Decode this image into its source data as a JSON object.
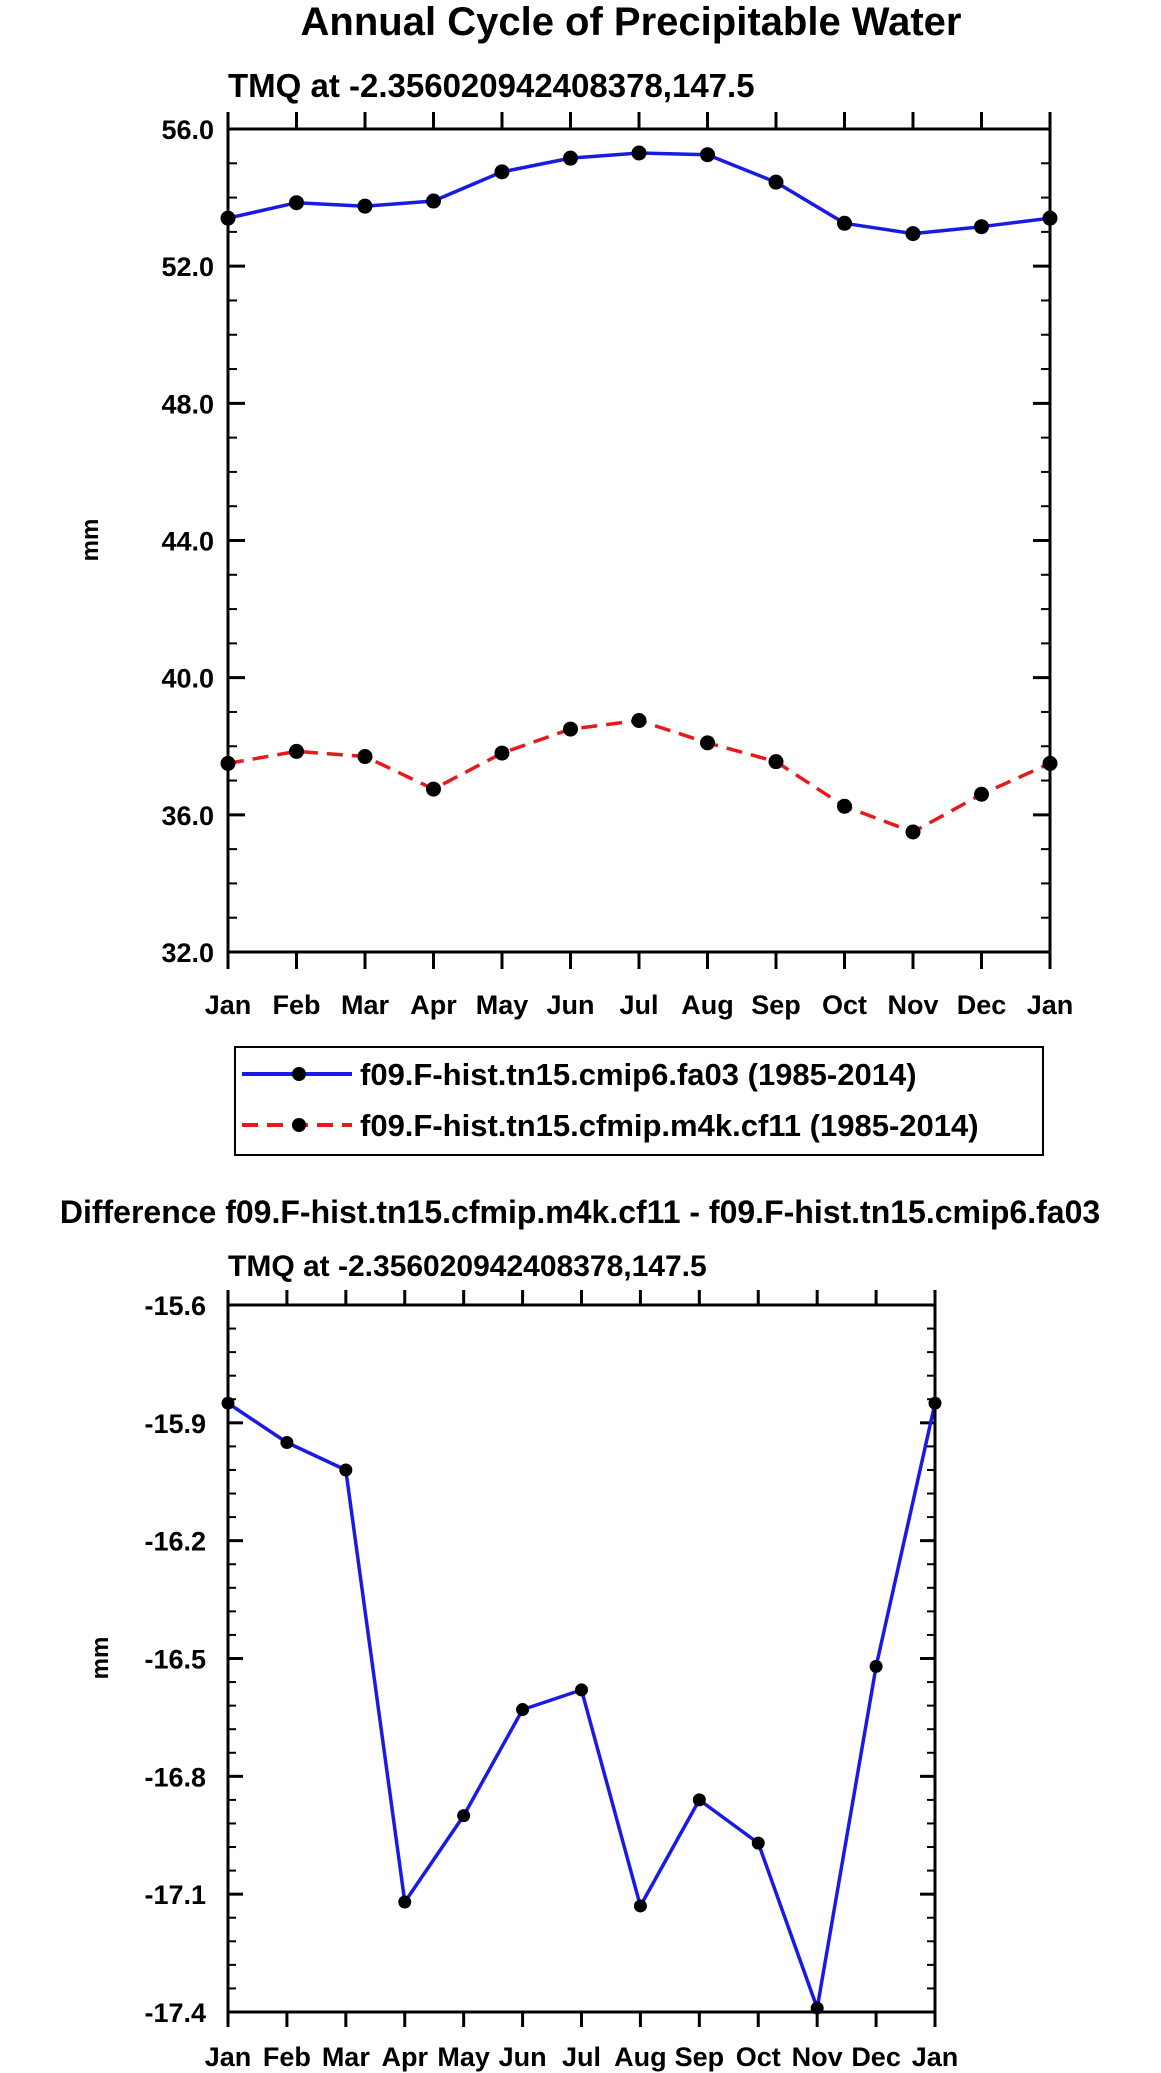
{
  "chart_data": [
    {
      "type": "line",
      "title": "Annual Cycle of Precipitable Water",
      "subtitle": "TMQ at -2.356020942408378,147.5",
      "ylabel": "mm",
      "xlabel": "",
      "categories": [
        "Jan",
        "Feb",
        "Mar",
        "Apr",
        "May",
        "Jun",
        "Jul",
        "Aug",
        "Sep",
        "Oct",
        "Nov",
        "Dec",
        "Jan"
      ],
      "ylim": [
        32,
        56
      ],
      "yticks": [
        "32.0",
        "36.0",
        "40.0",
        "44.0",
        "48.0",
        "52.0",
        "56.0"
      ],
      "yticks_values": [
        32,
        36,
        40,
        44,
        48,
        52,
        56
      ],
      "grid": false,
      "legend_position": "bottom",
      "series": [
        {
          "name": "f09.F-hist.tn15.cmip6.fa03 (1985-2014)",
          "color": "#1a1ae6",
          "dash": "solid",
          "values": [
            53.4,
            53.85,
            53.75,
            53.9,
            54.75,
            55.15,
            55.3,
            55.25,
            54.45,
            53.25,
            52.95,
            53.15,
            53.4
          ]
        },
        {
          "name": "f09.F-hist.tn15.cfmip.m4k.cf11 (1985-2014)",
          "color": "#e61a1a",
          "dash": "dashed",
          "values": [
            37.5,
            37.85,
            37.7,
            36.75,
            37.8,
            38.5,
            38.75,
            38.1,
            37.55,
            36.25,
            35.5,
            36.6,
            37.5
          ]
        }
      ]
    },
    {
      "type": "line",
      "title": "Difference f09.F-hist.tn15.cfmip.m4k.cf11 - f09.F-hist.tn15.cmip6.fa03",
      "subtitle": "TMQ at -2.356020942408378,147.5",
      "ylabel": "mm",
      "xlabel": "",
      "categories": [
        "Jan",
        "Feb",
        "Mar",
        "Apr",
        "May",
        "Jun",
        "Jul",
        "Aug",
        "Sep",
        "Oct",
        "Nov",
        "Dec",
        "Jan"
      ],
      "ylim": [
        -17.4,
        -15.6
      ],
      "yticks": [
        "-17.4",
        "-17.1",
        "-16.8",
        "-16.5",
        "-16.2",
        "-15.9",
        "-15.6"
      ],
      "yticks_values": [
        -17.4,
        -17.1,
        -16.8,
        -16.5,
        -16.2,
        -15.9,
        -15.6
      ],
      "grid": false,
      "series": [
        {
          "name": "difference",
          "color": "#1a1ae6",
          "dash": "solid",
          "values": [
            -15.85,
            -15.95,
            -16.02,
            -17.12,
            -16.9,
            -16.63,
            -16.58,
            -17.13,
            -16.86,
            -16.97,
            -17.39,
            -16.52,
            -15.85
          ]
        }
      ]
    }
  ]
}
